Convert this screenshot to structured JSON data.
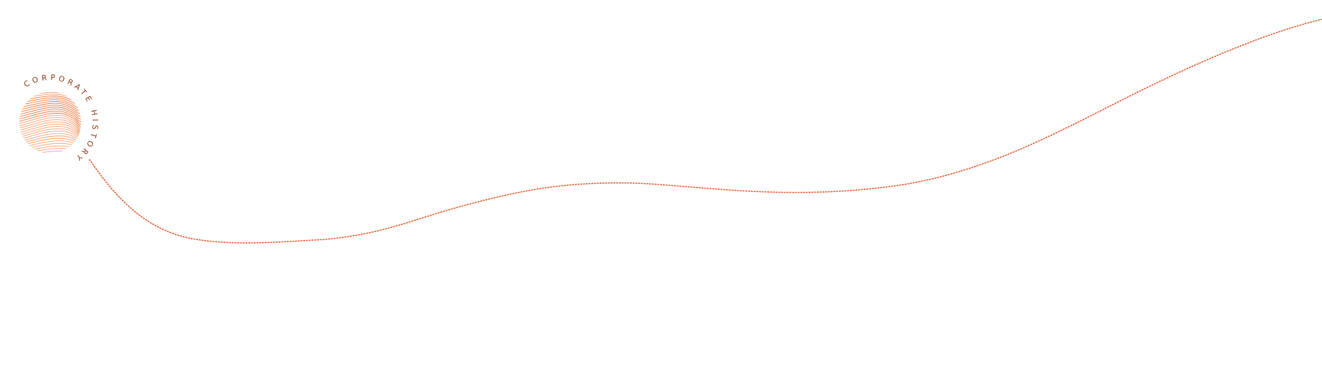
{
  "logo": {
    "text": "CORPORATE HISTORY",
    "text_color": "#8a3a14",
    "line_color": "#f39a68",
    "accent_line_color": "#e8743a"
  },
  "timeline": {
    "line_color": "#e8572a",
    "style": "dotted"
  }
}
